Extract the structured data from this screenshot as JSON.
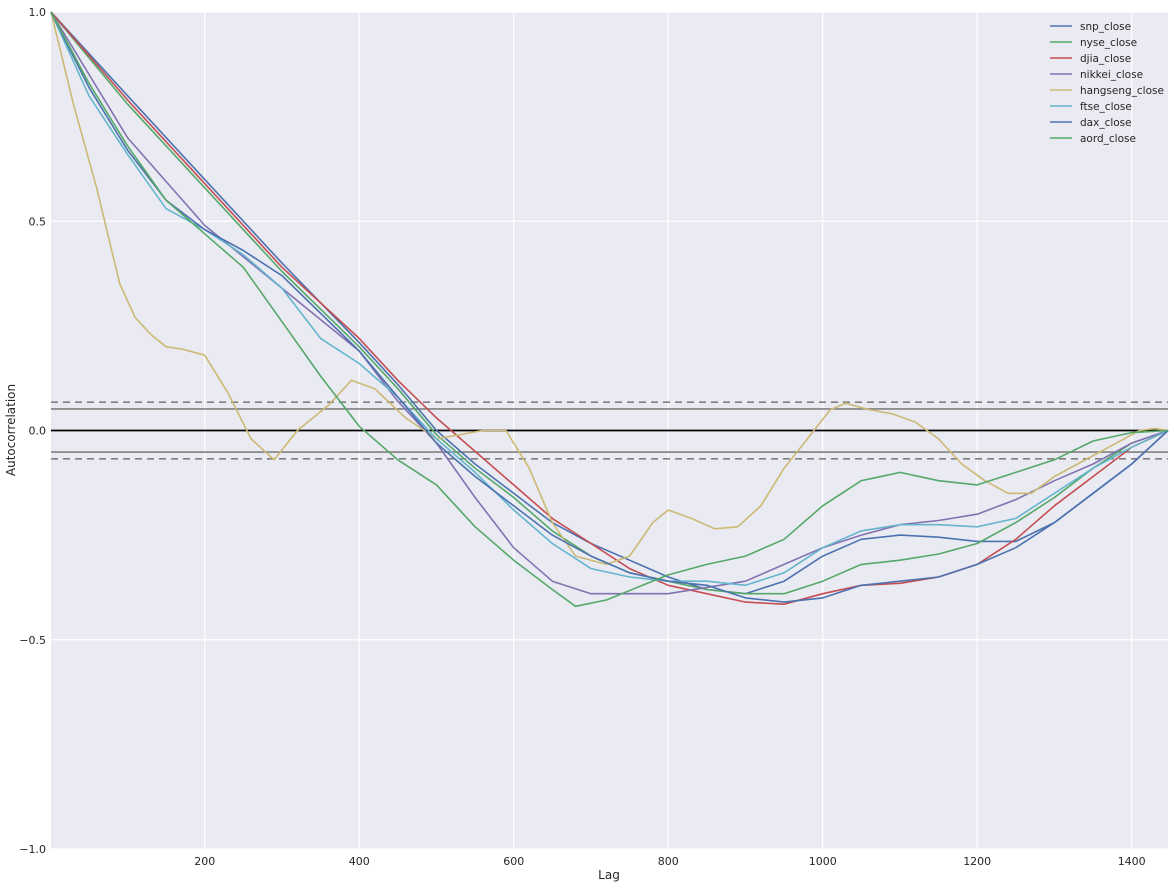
{
  "chart_data": {
    "type": "line",
    "title": "",
    "xlabel": "Lag",
    "ylabel": "Autocorrelation",
    "xlim": [
      1,
      1447
    ],
    "ylim": [
      -1.0,
      1.0
    ],
    "x_ticks": [
      200,
      400,
      600,
      800,
      1000,
      1200,
      1400
    ],
    "x_tick_labels": [
      "200",
      "400",
      "600",
      "800",
      "1000",
      "1200",
      "1400"
    ],
    "y_ticks": [
      1.0,
      0.5,
      0.0,
      -0.5,
      -1.0
    ],
    "y_tick_labels": [
      "1.0",
      "0.5",
      "0.0",
      "−0.5",
      "−1.0"
    ],
    "grid": true,
    "legend_position": "top-right",
    "reference_lines": [
      {
        "y": 0.0,
        "style": "solid-black"
      },
      {
        "y": 0.0515,
        "style": "solid-grey"
      },
      {
        "y": -0.0515,
        "style": "solid-grey"
      },
      {
        "y": 0.0677,
        "style": "dashed-grey"
      },
      {
        "y": -0.0677,
        "style": "dashed-grey"
      }
    ],
    "series": [
      {
        "name": "snp_close",
        "color": "#4c72b0",
        "x": [
          1,
          100,
          200,
          300,
          400,
          450,
          500,
          550,
          600,
          650,
          700,
          750,
          800,
          850,
          900,
          950,
          1000,
          1050,
          1100,
          1150,
          1200,
          1250,
          1300,
          1350,
          1400,
          1447
        ],
        "y": [
          1.0,
          0.8,
          0.6,
          0.4,
          0.21,
          0.11,
          0.0,
          -0.08,
          -0.15,
          -0.22,
          -0.27,
          -0.31,
          -0.35,
          -0.38,
          -0.39,
          -0.36,
          -0.3,
          -0.26,
          -0.25,
          -0.255,
          -0.265,
          -0.265,
          -0.22,
          -0.15,
          -0.08,
          0.0
        ]
      },
      {
        "name": "nyse_close",
        "color": "#55a868",
        "x": [
          1,
          100,
          200,
          300,
          400,
          450,
          500,
          550,
          600,
          650,
          700,
          750,
          800,
          850,
          900,
          950,
          1000,
          1050,
          1100,
          1150,
          1200,
          1250,
          1300,
          1350,
          1400,
          1447
        ],
        "y": [
          1.0,
          0.78,
          0.58,
          0.38,
          0.2,
          0.1,
          -0.01,
          -0.09,
          -0.16,
          -0.24,
          -0.3,
          -0.34,
          -0.36,
          -0.38,
          -0.39,
          -0.39,
          -0.36,
          -0.32,
          -0.31,
          -0.295,
          -0.27,
          -0.22,
          -0.16,
          -0.09,
          -0.03,
          0.0
        ]
      },
      {
        "name": "djia_close",
        "color": "#c44e52",
        "x": [
          1,
          100,
          200,
          300,
          400,
          450,
          500,
          550,
          600,
          650,
          700,
          750,
          800,
          850,
          900,
          950,
          1000,
          1050,
          1100,
          1150,
          1200,
          1250,
          1300,
          1350,
          1400,
          1447
        ],
        "y": [
          1.0,
          0.79,
          0.59,
          0.39,
          0.22,
          0.12,
          0.03,
          -0.05,
          -0.13,
          -0.21,
          -0.27,
          -0.33,
          -0.37,
          -0.39,
          -0.41,
          -0.415,
          -0.39,
          -0.37,
          -0.365,
          -0.35,
          -0.32,
          -0.26,
          -0.18,
          -0.11,
          -0.04,
          0.0
        ]
      },
      {
        "name": "nikkei_close",
        "color": "#8172b2",
        "x": [
          1,
          100,
          200,
          300,
          400,
          450,
          500,
          550,
          600,
          650,
          700,
          750,
          800,
          850,
          900,
          950,
          1000,
          1050,
          1100,
          1150,
          1200,
          1250,
          1300,
          1350,
          1400,
          1447
        ],
        "y": [
          1.0,
          0.7,
          0.49,
          0.34,
          0.19,
          0.07,
          -0.03,
          -0.16,
          -0.28,
          -0.36,
          -0.39,
          -0.39,
          -0.39,
          -0.375,
          -0.36,
          -0.32,
          -0.28,
          -0.25,
          -0.225,
          -0.215,
          -0.2,
          -0.165,
          -0.12,
          -0.08,
          -0.03,
          0.0
        ]
      },
      {
        "name": "hangseng_close",
        "color": "#ccb974",
        "x": [
          1,
          30,
          60,
          90,
          110,
          130,
          150,
          170,
          200,
          230,
          260,
          290,
          320,
          360,
          390,
          420,
          460,
          500,
          530,
          560,
          590,
          620,
          650,
          680,
          720,
          750,
          780,
          800,
          830,
          860,
          890,
          920,
          950,
          980,
          1010,
          1030,
          1060,
          1090,
          1120,
          1150,
          1180,
          1210,
          1240,
          1270,
          1300,
          1330,
          1360,
          1390,
          1410,
          1430,
          1447
        ],
        "y": [
          1.0,
          0.78,
          0.58,
          0.35,
          0.27,
          0.23,
          0.2,
          0.195,
          0.18,
          0.09,
          -0.02,
          -0.07,
          0.0,
          0.06,
          0.12,
          0.1,
          0.03,
          -0.02,
          -0.01,
          0.0,
          0.0,
          -0.09,
          -0.22,
          -0.3,
          -0.32,
          -0.3,
          -0.22,
          -0.19,
          -0.21,
          -0.235,
          -0.23,
          -0.18,
          -0.09,
          -0.02,
          0.05,
          0.065,
          0.05,
          0.04,
          0.02,
          -0.02,
          -0.08,
          -0.12,
          -0.15,
          -0.15,
          -0.11,
          -0.08,
          -0.05,
          -0.02,
          0.0,
          0.005,
          0.0
        ]
      },
      {
        "name": "ftse_close",
        "color": "#64b5cd",
        "x": [
          1,
          50,
          100,
          150,
          200,
          250,
          300,
          350,
          400,
          450,
          500,
          550,
          600,
          650,
          700,
          750,
          800,
          850,
          900,
          950,
          1000,
          1050,
          1100,
          1150,
          1200,
          1250,
          1300,
          1350,
          1400,
          1447
        ],
        "y": [
          1.0,
          0.8,
          0.66,
          0.53,
          0.48,
          0.42,
          0.34,
          0.22,
          0.16,
          0.08,
          -0.02,
          -0.1,
          -0.19,
          -0.27,
          -0.33,
          -0.35,
          -0.36,
          -0.36,
          -0.37,
          -0.34,
          -0.28,
          -0.24,
          -0.225,
          -0.225,
          -0.23,
          -0.21,
          -0.15,
          -0.09,
          -0.04,
          0.0
        ]
      },
      {
        "name": "dax_close",
        "color": "#4c72b0",
        "x": [
          1,
          50,
          100,
          150,
          200,
          250,
          300,
          350,
          400,
          450,
          500,
          550,
          600,
          650,
          700,
          750,
          800,
          850,
          900,
          950,
          1000,
          1050,
          1100,
          1150,
          1200,
          1250,
          1300,
          1350,
          1400,
          1447
        ],
        "y": [
          1.0,
          0.82,
          0.67,
          0.55,
          0.48,
          0.43,
          0.37,
          0.28,
          0.19,
          0.08,
          -0.03,
          -0.11,
          -0.18,
          -0.25,
          -0.3,
          -0.34,
          -0.36,
          -0.37,
          -0.4,
          -0.41,
          -0.4,
          -0.37,
          -0.36,
          -0.35,
          -0.32,
          -0.28,
          -0.22,
          -0.15,
          -0.08,
          0.0
        ]
      },
      {
        "name": "aord_close",
        "color": "#55a868",
        "x": [
          1,
          50,
          100,
          150,
          200,
          250,
          300,
          350,
          400,
          450,
          500,
          550,
          600,
          650,
          680,
          720,
          760,
          800,
          850,
          900,
          950,
          1000,
          1050,
          1100,
          1150,
          1200,
          1250,
          1300,
          1350,
          1400,
          1447
        ],
        "y": [
          1.0,
          0.83,
          0.68,
          0.55,
          0.47,
          0.39,
          0.26,
          0.13,
          0.01,
          -0.07,
          -0.13,
          -0.23,
          -0.31,
          -0.38,
          -0.42,
          -0.405,
          -0.375,
          -0.345,
          -0.32,
          -0.3,
          -0.26,
          -0.18,
          -0.12,
          -0.1,
          -0.12,
          -0.13,
          -0.1,
          -0.07,
          -0.025,
          -0.005,
          0.0
        ]
      }
    ]
  }
}
